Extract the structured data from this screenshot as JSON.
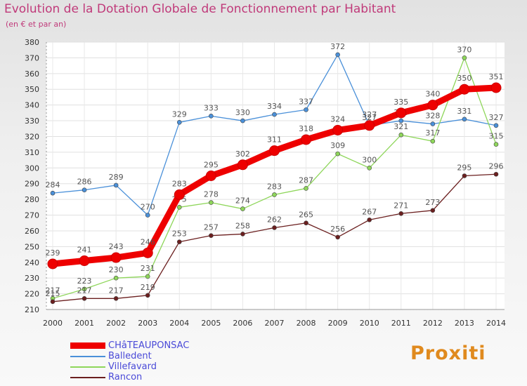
{
  "chart_data": {
    "type": "line",
    "title": "Evolution de la Dotation Globale de Fonctionnement par Habitant",
    "subtitle": "(en € et par an)",
    "xlabel": "",
    "ylabel": "",
    "ylim": [
      210,
      380
    ],
    "yticks": [
      210,
      220,
      230,
      240,
      250,
      260,
      270,
      280,
      290,
      300,
      310,
      320,
      330,
      340,
      350,
      360,
      370,
      380
    ],
    "categories": [
      "2000",
      "2001",
      "2002",
      "2003",
      "2004",
      "2005",
      "2006",
      "2007",
      "2008",
      "2009",
      "2010",
      "2011",
      "2012",
      "2013",
      "2014"
    ],
    "grid": true,
    "legend": "bottom-left",
    "series": [
      {
        "name": "Balledent",
        "color": "#4a90d9",
        "values": [
          284,
          286,
          289,
          270,
          329,
          333,
          330,
          334,
          337,
          372,
          327,
          330,
          328,
          331,
          327
        ]
      },
      {
        "name": "Villefavard",
        "color": "#8ed65a",
        "values": [
          217,
          223,
          230,
          231,
          275,
          278,
          274,
          283,
          287,
          309,
          300,
          321,
          317,
          370,
          315
        ]
      },
      {
        "name": "Rancon",
        "color": "#6b1f1f",
        "values": [
          215,
          217,
          217,
          219,
          253,
          257,
          258,
          262,
          265,
          256,
          267,
          271,
          273,
          295,
          296
        ]
      },
      {
        "name": "CHâTEAUPONSAC",
        "color": "#ee0000",
        "values": [
          239,
          241,
          243,
          246,
          283,
          295,
          302,
          311,
          318,
          324,
          327,
          335,
          340,
          350,
          351
        ]
      }
    ]
  },
  "legend": {
    "items": [
      {
        "label": "CHâTEAUPONSAC",
        "color": "#ee0000"
      },
      {
        "label": "Balledent",
        "color": "#4a90d9"
      },
      {
        "label": "Villefavard",
        "color": "#8ed65a"
      },
      {
        "label": "Rancon",
        "color": "#6b1f1f"
      }
    ]
  },
  "logo": {
    "text": "Proxiti"
  }
}
